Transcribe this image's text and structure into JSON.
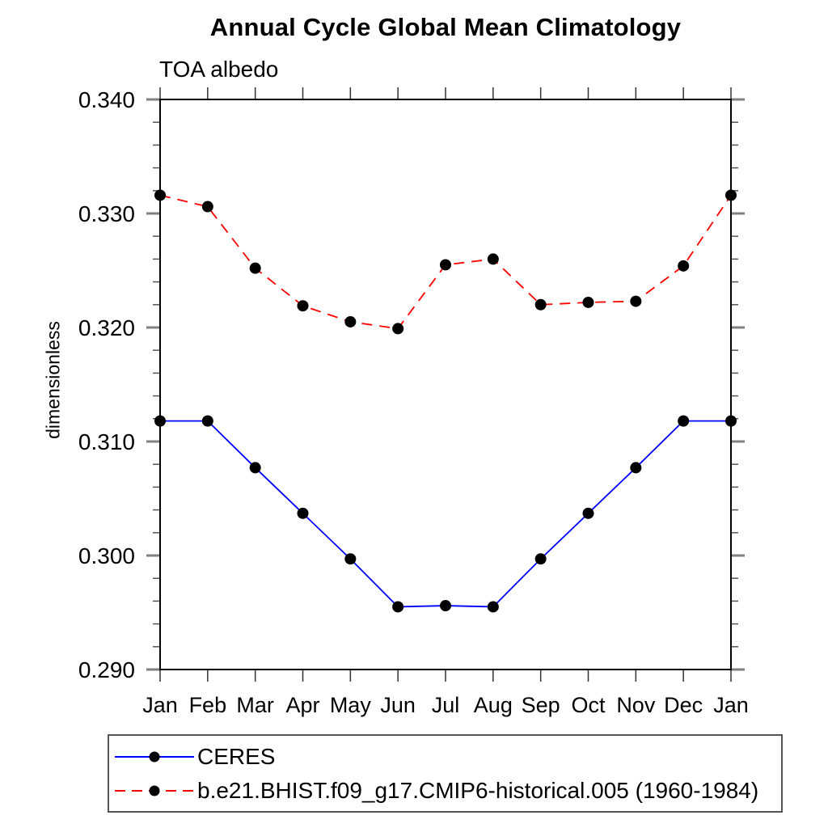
{
  "page": {
    "title": "Annual Cycle Global Mean Climatology",
    "subtitle": "TOA albedo"
  },
  "chart_data": {
    "type": "line",
    "title": "Annual Cycle Global Mean Climatology",
    "subtitle": "TOA albedo",
    "xlabel": "",
    "ylabel": "dimensionless",
    "categories": [
      "Jan",
      "Feb",
      "Mar",
      "Apr",
      "May",
      "Jun",
      "Jul",
      "Aug",
      "Sep",
      "Oct",
      "Nov",
      "Dec",
      "Jan"
    ],
    "series": [
      {
        "name": "CERES",
        "color": "#0000ff",
        "line_style": "solid",
        "marker": "circle",
        "marker_color": "#000000",
        "values": [
          0.3118,
          0.3118,
          0.3077,
          0.3037,
          0.2997,
          0.2955,
          0.2956,
          0.2955,
          0.2997,
          0.3037,
          0.3077,
          0.3118,
          0.3118
        ]
      },
      {
        "name": "b.e21.BHIST.f09_g17.CMIP6-historical.005 (1960-1984)",
        "color": "#ff0000",
        "line_style": "dashed",
        "marker": "circle",
        "marker_color": "#000000",
        "values": [
          0.3316,
          0.3306,
          0.3252,
          0.3219,
          0.3205,
          0.3199,
          0.3255,
          0.326,
          0.322,
          0.3222,
          0.3223,
          0.3254,
          0.3316
        ]
      }
    ],
    "ylim": [
      0.29,
      0.34
    ],
    "yticks": [
      0.29,
      0.3,
      0.31,
      0.32,
      0.33,
      0.34
    ],
    "ytick_labels": [
      "0.290",
      "0.300",
      "0.310",
      "0.320",
      "0.330",
      "0.340"
    ],
    "ytick_minor_step": 0.002,
    "grid": false,
    "legend_position": "bottom-left"
  },
  "legend": {
    "items": [
      {
        "label": "CERES"
      },
      {
        "label": "b.e21.BHIST.f09_g17.CMIP6-historical.005 (1960-1984)"
      }
    ]
  }
}
